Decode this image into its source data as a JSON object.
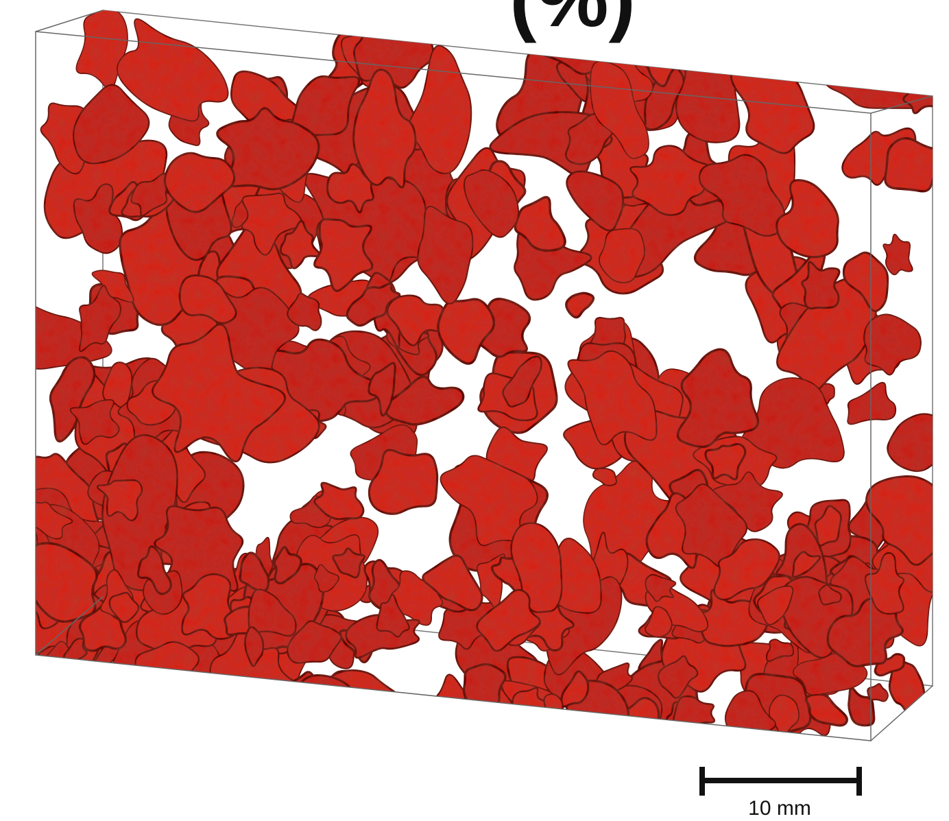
{
  "title_fragment": "(%)",
  "scale_bar": {
    "label": "10 mm"
  }
}
